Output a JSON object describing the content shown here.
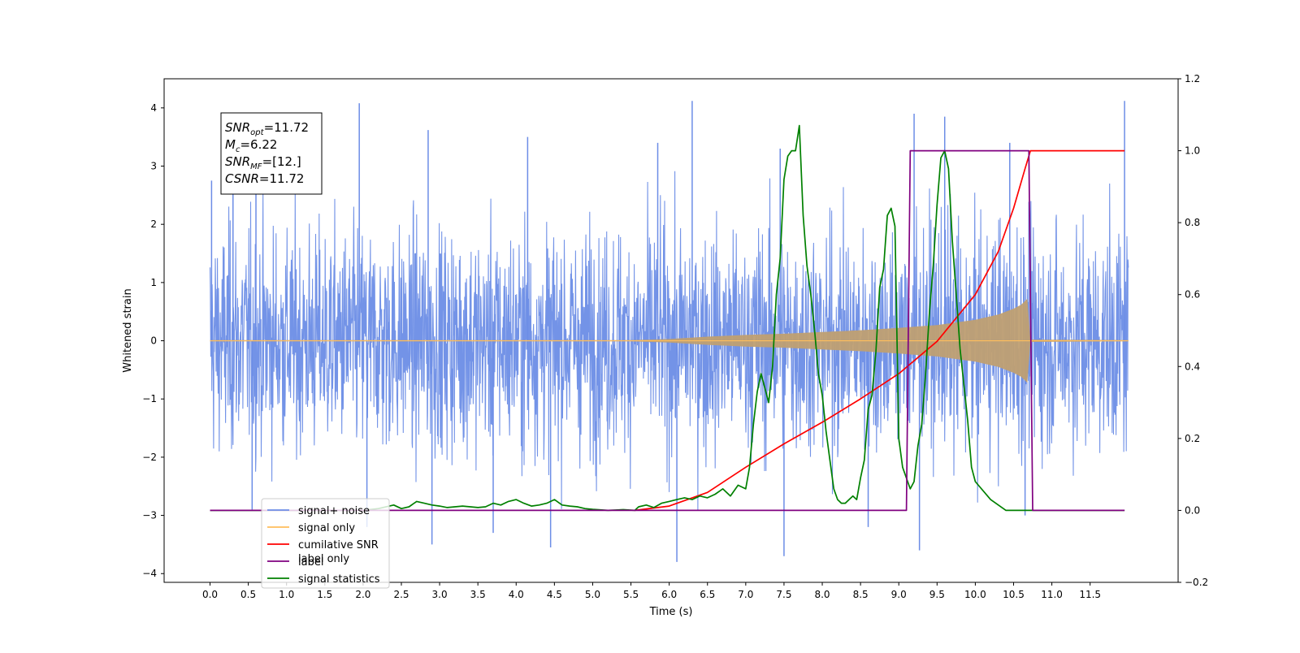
{
  "chart_data": {
    "type": "line",
    "xlabel": "Time (s)",
    "ylabel": "Whitened strain",
    "xlim": [
      -0.6,
      12.65
    ],
    "ylim": [
      -4.15,
      4.5
    ],
    "y2lim": [
      -0.2,
      1.2
    ],
    "grid": false,
    "legend_position": "lower-left",
    "x_ticks": [
      0.0,
      0.5,
      1.0,
      1.5,
      2.0,
      2.5,
      3.0,
      3.5,
      4.0,
      4.5,
      5.0,
      5.5,
      6.0,
      6.5,
      7.0,
      7.5,
      8.0,
      8.5,
      9.0,
      9.5,
      10.0,
      10.5,
      11.0,
      11.5
    ],
    "x_tick_labels": [
      "0.0",
      "0.5",
      "1.0",
      "1.5",
      "2.0",
      "2.5",
      "3.0",
      "3.5",
      "4.0",
      "4.5",
      "5.0",
      "5.5",
      "6.0",
      "6.5",
      "7.0",
      "7.5",
      "8.0",
      "8.5",
      "9.0",
      "9.5",
      "10.0",
      "10.5",
      "11.0",
      "11.5"
    ],
    "y_ticks": [
      -4,
      -3,
      -2,
      -1,
      0,
      1,
      2,
      3,
      4
    ],
    "y_tick_labels": [
      "−4",
      "−3",
      "−2",
      "−1",
      "0",
      "1",
      "2",
      "3",
      "4"
    ],
    "y2_ticks": [
      -0.2,
      0.0,
      0.2,
      0.4,
      0.6,
      0.8,
      1.0,
      1.2
    ],
    "y2_tick_labels": [
      "−0.2",
      "0.0",
      "0.2",
      "0.4",
      "0.6",
      "0.8",
      "1.0",
      "1.2"
    ],
    "annotation": {
      "lines": [
        {
          "main": "SNR",
          "sub": "opt",
          "rest": "=11.72"
        },
        {
          "main": "M",
          "sub": "c",
          "rest": "=6.22"
        },
        {
          "main": "SNR",
          "sub": "MF",
          "rest": "=[12.]"
        },
        {
          "main": "CSNR",
          "sub": "",
          "rest": "=11.72"
        }
      ]
    },
    "legend": [
      {
        "label": "signal+ noise",
        "color": "#6c8de6"
      },
      {
        "label": "signal only",
        "color": "#ffbe5c"
      },
      {
        "label": "cumilative SNR",
        "color": "#ff0000"
      },
      {
        "label": "label",
        "color": "#800080"
      },
      {
        "label": "signal statistics",
        "color": "#008000"
      }
    ],
    "legend_overlap_text": "label only",
    "series": [
      {
        "name": "signal+ noise",
        "axis": "left",
        "color": "#6c8de6",
        "noise_std": 0.95,
        "t_start": 0.0,
        "t_end": 12.0,
        "peaks": [
          [
            0.02,
            2.75
          ],
          [
            0.3,
            3.1
          ],
          [
            0.55,
            -2.9
          ],
          [
            0.6,
            3.25
          ],
          [
            1.95,
            4.08
          ],
          [
            2.05,
            -3.2
          ],
          [
            2.85,
            3.62
          ],
          [
            2.9,
            -3.5
          ],
          [
            3.7,
            -3.3
          ],
          [
            4.15,
            3.5
          ],
          [
            4.45,
            -3.55
          ],
          [
            5.85,
            3.4
          ],
          [
            6.1,
            -3.8
          ],
          [
            6.3,
            4.12
          ],
          [
            7.45,
            3.3
          ],
          [
            7.5,
            -3.7
          ],
          [
            8.6,
            -3.2
          ],
          [
            9.2,
            3.9
          ],
          [
            9.27,
            -3.6
          ],
          [
            9.6,
            3.85
          ],
          [
            10.45,
            3.4
          ],
          [
            10.65,
            -3.0
          ],
          [
            11.95,
            4.12
          ]
        ]
      },
      {
        "name": "signal only",
        "axis": "left",
        "color": "#ffbe5c",
        "envelope": [
          [
            0.0,
            0.01
          ],
          [
            5.5,
            0.01
          ],
          [
            6.0,
            0.03
          ],
          [
            6.5,
            0.07
          ],
          [
            7.0,
            0.1
          ],
          [
            7.5,
            0.12
          ],
          [
            8.0,
            0.15
          ],
          [
            8.5,
            0.18
          ],
          [
            9.0,
            0.22
          ],
          [
            9.5,
            0.27
          ],
          [
            10.0,
            0.36
          ],
          [
            10.3,
            0.45
          ],
          [
            10.5,
            0.55
          ],
          [
            10.6,
            0.62
          ],
          [
            10.68,
            0.72
          ],
          [
            10.72,
            0.02
          ],
          [
            12.0,
            0.01
          ]
        ]
      },
      {
        "name": "cumilative SNR",
        "axis": "right",
        "color": "#ff0000",
        "x": [
          5.55,
          6.0,
          6.5,
          7.0,
          7.5,
          8.0,
          8.5,
          9.0,
          9.5,
          10.0,
          10.3,
          10.5,
          10.65,
          10.72,
          11.0,
          11.5,
          11.95
        ],
        "y": [
          0.0,
          0.012,
          0.05,
          0.12,
          0.185,
          0.245,
          0.31,
          0.38,
          0.47,
          0.6,
          0.72,
          0.84,
          0.95,
          1.0,
          1.0,
          1.0,
          1.0
        ]
      },
      {
        "name": "label",
        "axis": "right",
        "color": "#800080",
        "x": [
          0.0,
          9.1,
          9.15,
          10.7,
          10.75,
          11.95
        ],
        "y": [
          0.0,
          0.0,
          1.0,
          1.0,
          0.0,
          0.0
        ]
      },
      {
        "name": "signal statistics",
        "axis": "right",
        "color": "#008000",
        "x": [
          0.0,
          0.5,
          1.0,
          1.5,
          2.0,
          2.2,
          2.4,
          2.5,
          2.6,
          2.7,
          2.8,
          2.9,
          3.0,
          3.1,
          3.2,
          3.3,
          3.4,
          3.5,
          3.6,
          3.7,
          3.8,
          3.9,
          4.0,
          4.1,
          4.2,
          4.3,
          4.4,
          4.5,
          4.6,
          4.7,
          4.8,
          4.9,
          5.0,
          5.2,
          5.4,
          5.55,
          5.6,
          5.7,
          5.8,
          5.9,
          6.0,
          6.1,
          6.2,
          6.3,
          6.4,
          6.5,
          6.6,
          6.7,
          6.8,
          6.9,
          7.0,
          7.05,
          7.1,
          7.15,
          7.2,
          7.25,
          7.3,
          7.35,
          7.4,
          7.45,
          7.5,
          7.55,
          7.6,
          7.65,
          7.7,
          7.75,
          7.8,
          7.85,
          7.9,
          7.95,
          8.0,
          8.05,
          8.1,
          8.15,
          8.2,
          8.25,
          8.3,
          8.35,
          8.4,
          8.45,
          8.5,
          8.55,
          8.6,
          8.65,
          8.7,
          8.75,
          8.8,
          8.85,
          8.9,
          8.95,
          9.0,
          9.05,
          9.1,
          9.15,
          9.2,
          9.25,
          9.3,
          9.35,
          9.4,
          9.45,
          9.5,
          9.55,
          9.6,
          9.65,
          9.7,
          9.75,
          9.8,
          9.85,
          9.9,
          9.95,
          10.0,
          10.2,
          10.4,
          10.5,
          10.55,
          10.6,
          10.65,
          10.7,
          10.75,
          10.8,
          11.0,
          11.5,
          11.95
        ],
        "y": [
          0.0,
          0.0,
          0.0,
          0.0,
          0.0,
          0.005,
          0.015,
          0.005,
          0.01,
          0.025,
          0.02,
          0.015,
          0.012,
          0.008,
          0.01,
          0.012,
          0.01,
          0.008,
          0.01,
          0.02,
          0.015,
          0.025,
          0.03,
          0.02,
          0.012,
          0.015,
          0.02,
          0.03,
          0.015,
          0.012,
          0.01,
          0.005,
          0.003,
          0.0,
          0.002,
          0.0,
          0.01,
          0.015,
          0.008,
          0.02,
          0.025,
          0.03,
          0.035,
          0.03,
          0.04,
          0.035,
          0.045,
          0.06,
          0.04,
          0.07,
          0.06,
          0.12,
          0.24,
          0.33,
          0.38,
          0.34,
          0.3,
          0.4,
          0.6,
          0.7,
          0.92,
          0.985,
          1.0,
          1.0,
          1.07,
          0.82,
          0.68,
          0.6,
          0.5,
          0.38,
          0.32,
          0.22,
          0.14,
          0.06,
          0.03,
          0.02,
          0.02,
          0.03,
          0.04,
          0.03,
          0.09,
          0.14,
          0.28,
          0.32,
          0.44,
          0.62,
          0.67,
          0.82,
          0.84,
          0.79,
          0.2,
          0.12,
          0.09,
          0.06,
          0.08,
          0.18,
          0.24,
          0.38,
          0.55,
          0.68,
          0.85,
          0.98,
          1.0,
          0.95,
          0.75,
          0.6,
          0.45,
          0.35,
          0.25,
          0.12,
          0.08,
          0.03,
          0.0,
          0.0,
          0.0,
          0.0,
          0.0,
          0.0,
          0.0,
          0.0,
          0.0,
          0.0,
          0.0
        ]
      }
    ]
  }
}
